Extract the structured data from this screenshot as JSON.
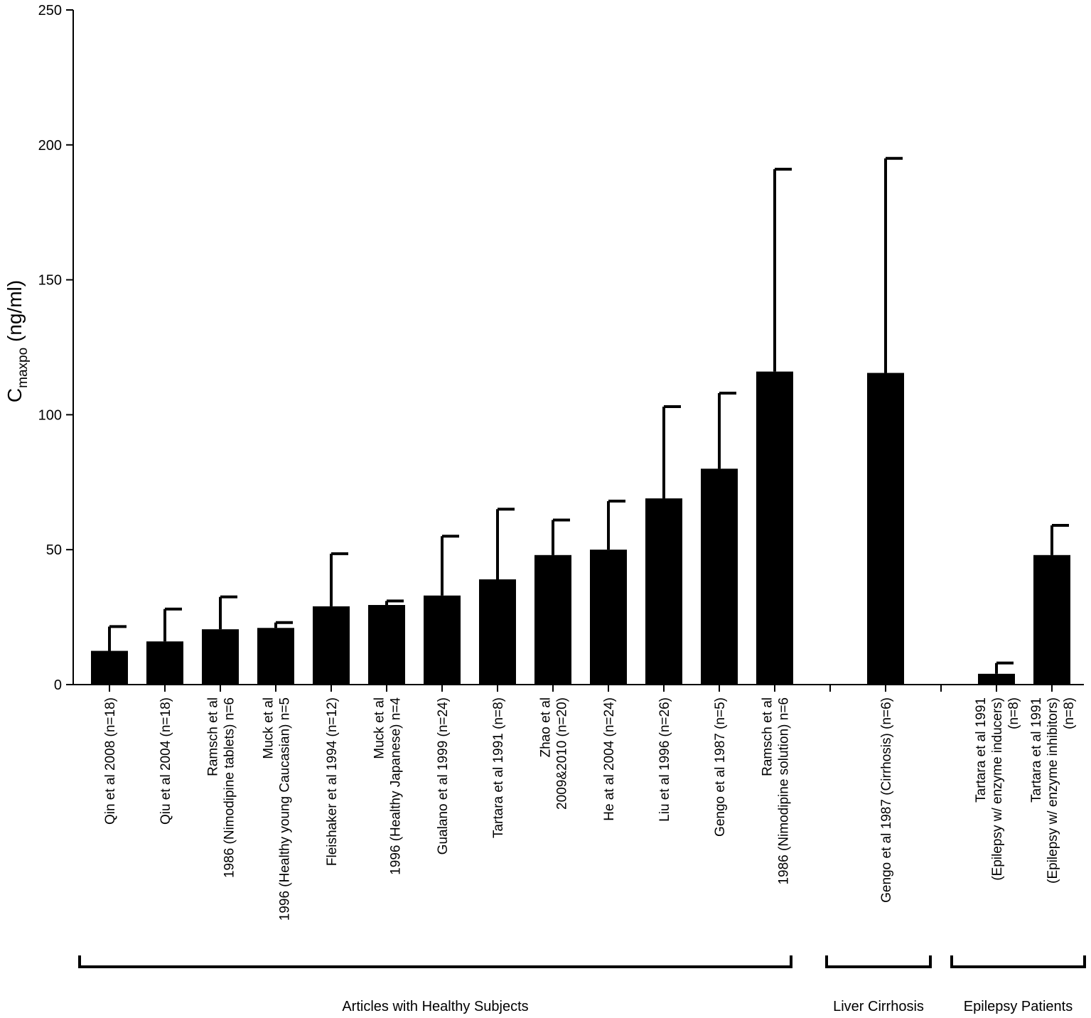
{
  "chart_data": {
    "type": "bar",
    "ylabel": {
      "main": "C",
      "sub": "maxpo",
      "unit": " (ng/ml)"
    },
    "ylim": [
      0,
      250
    ],
    "yticks": [
      "0",
      "50",
      "100",
      "150",
      "200",
      "250"
    ],
    "bar_color": "#000000",
    "groups": [
      {
        "name": "Articles with Healthy Subjects",
        "bars": [
          {
            "label": [
              "Qin et al 2008 (n=18)"
            ],
            "value": 12.5,
            "error": 9
          },
          {
            "label": [
              "Qiu et al 2004 (n=18)"
            ],
            "value": 16,
            "error": 12
          },
          {
            "label": [
              "Ramsch et al",
              "1986 (Nimodipine tablets) n=6"
            ],
            "value": 20.5,
            "error": 12
          },
          {
            "label": [
              "Muck et al",
              "1996 (Healthy young Caucasian) n=5"
            ],
            "value": 21,
            "error": 2
          },
          {
            "label": [
              "Fleishaker et al 1994 (n=12)"
            ],
            "value": 29,
            "error": 19.5
          },
          {
            "label": [
              "Muck et al",
              "1996 (Healthy Japanese) n=4"
            ],
            "value": 29.5,
            "error": 1.5
          },
          {
            "label": [
              "Gualano et al 1999 (n=24)"
            ],
            "value": 33,
            "error": 22
          },
          {
            "label": [
              "Tartara et al 1991 (n=8)"
            ],
            "value": 39,
            "error": 26
          },
          {
            "label": [
              "Zhao et al",
              "2009&2010 (n=20)"
            ],
            "value": 48,
            "error": 13
          },
          {
            "label": [
              "He at al 2004 (n=24)"
            ],
            "value": 50,
            "error": 18
          },
          {
            "label": [
              "Liu et al 1996 (n=26)"
            ],
            "value": 69,
            "error": 34
          },
          {
            "label": [
              "Gengo et al 1987 (n=5)"
            ],
            "value": 80,
            "error": 28
          },
          {
            "label": [
              "Ramsch et al",
              "1986 (Nimodipine solution) n=6"
            ],
            "value": 116,
            "error": 75
          }
        ]
      },
      {
        "name": "Liver Cirrhosis",
        "bars": [
          {
            "label": [
              "Gengo et al 1987 (Cirrhosis) (n=6)"
            ],
            "value": 115.5,
            "error": 79.5
          }
        ]
      },
      {
        "name": "Epilepsy Patients",
        "bars": [
          {
            "label": [
              "Tartara et al 1991",
              "(Epilepsy w/ enzyme inducers)",
              "(n=8)"
            ],
            "value": 4,
            "error": 4
          },
          {
            "label": [
              "Tartara et al 1991",
              "(Epilepsy w/ enzyme inhibitors)",
              "(n=8)"
            ],
            "value": 48,
            "error": 11
          }
        ]
      }
    ]
  }
}
